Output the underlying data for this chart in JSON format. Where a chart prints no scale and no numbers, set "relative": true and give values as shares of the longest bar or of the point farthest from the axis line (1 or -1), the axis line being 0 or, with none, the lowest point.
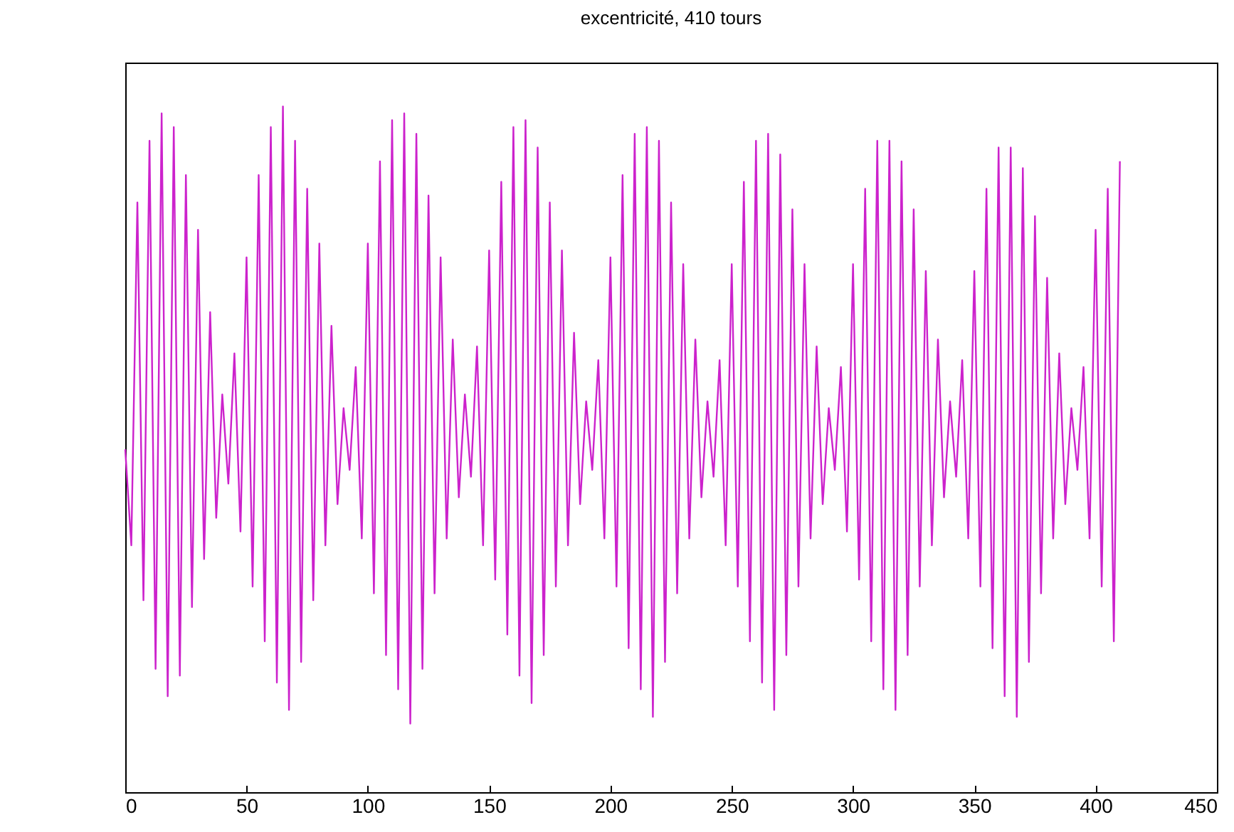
{
  "chart_data": {
    "type": "line",
    "title": "excentricité, 410 tours",
    "relative": true,
    "x": [
      0,
      2.5,
      5,
      7.5,
      10,
      12.5,
      15,
      17.5,
      20,
      22.5,
      25,
      27.5,
      30,
      32.5,
      35,
      37.5,
      40,
      42.5,
      45,
      47.5,
      50,
      52.5,
      55,
      57.5,
      60,
      62.5,
      65,
      67.5,
      70,
      72.5,
      75,
      77.5,
      80,
      82.5,
      85,
      87.5,
      90,
      92.5,
      95,
      97.5,
      100,
      102.5,
      105,
      107.5,
      110,
      112.5,
      115,
      117.5,
      120,
      122.5,
      125,
      127.5,
      130,
      132.5,
      135,
      137.5,
      140,
      142.5,
      145,
      147.5,
      150,
      152.5,
      155,
      157.5,
      160,
      162.5,
      165,
      167.5,
      170,
      172.5,
      175,
      177.5,
      180,
      182.5,
      185,
      187.5,
      190,
      192.5,
      195,
      197.5,
      200,
      202.5,
      205,
      207.5,
      210,
      212.5,
      215,
      217.5,
      220,
      222.5,
      225,
      227.5,
      230,
      232.5,
      235,
      237.5,
      240,
      242.5,
      245,
      247.5,
      250,
      252.5,
      255,
      257.5,
      260,
      262.5,
      265,
      267.5,
      270,
      272.5,
      275,
      277.5,
      280,
      282.5,
      285,
      287.5,
      290,
      292.5,
      295,
      297.5,
      300,
      302.5,
      305,
      307.5,
      310,
      312.5,
      315,
      317.5,
      320,
      322.5,
      325,
      327.5,
      330,
      332.5,
      335,
      337.5,
      340,
      342.5,
      345,
      347.5,
      350,
      352.5,
      355,
      357.5,
      360,
      362.5,
      365,
      367.5,
      370,
      372.5,
      375,
      377.5,
      380,
      382.5,
      385,
      387.5,
      390,
      392.5,
      395,
      397.5,
      400,
      402.5,
      405,
      407.5,
      410
    ],
    "series": [
      {
        "color": "#cc22cc",
        "values": [
          0.5,
          0.36,
          0.86,
          0.28,
          0.95,
          0.18,
          0.99,
          0.14,
          0.97,
          0.17,
          0.9,
          0.27,
          0.82,
          0.34,
          0.7,
          0.4,
          0.58,
          0.45,
          0.64,
          0.38,
          0.78,
          0.3,
          0.9,
          0.22,
          0.97,
          0.16,
          1.0,
          0.12,
          0.95,
          0.19,
          0.88,
          0.28,
          0.8,
          0.36,
          0.68,
          0.42,
          0.56,
          0.47,
          0.62,
          0.37,
          0.8,
          0.29,
          0.92,
          0.2,
          0.98,
          0.15,
          0.99,
          0.1,
          0.96,
          0.18,
          0.87,
          0.29,
          0.78,
          0.37,
          0.66,
          0.43,
          0.58,
          0.46,
          0.65,
          0.36,
          0.79,
          0.31,
          0.89,
          0.23,
          0.97,
          0.17,
          0.98,
          0.13,
          0.94,
          0.2,
          0.86,
          0.3,
          0.79,
          0.36,
          0.67,
          0.42,
          0.57,
          0.47,
          0.63,
          0.37,
          0.78,
          0.3,
          0.9,
          0.21,
          0.96,
          0.15,
          0.97,
          0.11,
          0.95,
          0.19,
          0.86,
          0.29,
          0.77,
          0.37,
          0.66,
          0.43,
          0.57,
          0.46,
          0.63,
          0.36,
          0.77,
          0.3,
          0.89,
          0.22,
          0.95,
          0.16,
          0.96,
          0.12,
          0.93,
          0.2,
          0.85,
          0.3,
          0.77,
          0.37,
          0.65,
          0.42,
          0.56,
          0.47,
          0.62,
          0.38,
          0.77,
          0.31,
          0.88,
          0.22,
          0.95,
          0.15,
          0.95,
          0.12,
          0.92,
          0.2,
          0.85,
          0.3,
          0.76,
          0.36,
          0.66,
          0.43,
          0.57,
          0.46,
          0.63,
          0.37,
          0.76,
          0.3,
          0.88,
          0.21,
          0.94,
          0.14,
          0.94,
          0.11,
          0.91,
          0.19,
          0.84,
          0.29,
          0.75,
          0.37,
          0.64,
          0.42,
          0.56,
          0.47,
          0.62,
          0.37,
          0.82,
          0.3,
          0.88,
          0.22,
          0.92
        ]
      }
    ],
    "xlim": [
      0,
      450
    ],
    "xticks": [
      0,
      50,
      100,
      150,
      200,
      250,
      300,
      350,
      400,
      450
    ],
    "grid": false,
    "legend": false,
    "marker": "none",
    "line_style": "solid"
  }
}
